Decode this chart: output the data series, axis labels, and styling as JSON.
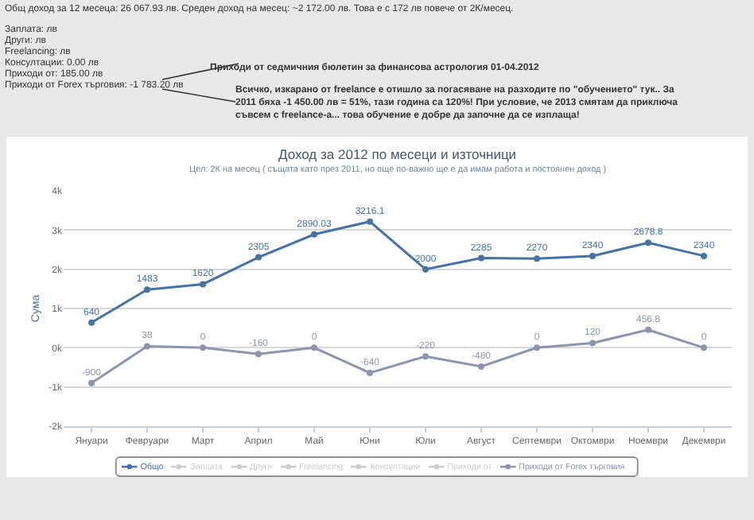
{
  "chart_data": {
    "type": "line",
    "title": "Доход за 2012 по месеци и източници",
    "subtitle": "Цел: 2К на месец ( същата като през 2011, но още по-важно ще е да имам работа и постоянен доход )",
    "ylabel": "Сума",
    "annotations": [
      "Общ доход за 12 месеца: 26 067.93 лв. Среден доход на месец: ~2 172.00 лв. Това е с 172 лв повече от 2К/месец.",
      "Заплата: лв",
      "Други: лв",
      "Freelancing: лв",
      "Консултации: 0.00 лв",
      "Приходи от: 185.00 лв",
      "Приходи от Forex търговия: -1 783.20 лв",
      "Приходи от седмичния бюлетин за финансова астрология 01-04.2012",
      "Всичко, изкарано от freelance е отишло за погасяване на разходите по \"обучението\" тук.. За 2011 бяха -1 450.00 лв = 51%, тази година са 120%! При условие, че 2013 смятам да приключа съвсем с freelance-а... това обучение е добре да започне да се изплаща!"
    ],
    "categories": [
      "Януари",
      "Февруари",
      "Март",
      "Април",
      "Май",
      "Юни",
      "Юли",
      "Август",
      "Септември",
      "Октомври",
      "Ноември",
      "Декември"
    ],
    "series": [
      {
        "name": "Общо",
        "color": "#4572a7",
        "values": [
          640,
          1483,
          1620,
          2305,
          2890.03,
          3216.1,
          2000,
          2285,
          2270,
          2340,
          2678.8,
          2340
        ]
      },
      {
        "name": "Заплата",
        "color": "#cccccc",
        "values": [
          null,
          null,
          null,
          null,
          null,
          null,
          null,
          null,
          null,
          null,
          null,
          null
        ]
      },
      {
        "name": "Други",
        "color": "#cccccc",
        "values": [
          null,
          null,
          null,
          null,
          null,
          null,
          null,
          null,
          null,
          null,
          null,
          null
        ]
      },
      {
        "name": "Freelancing",
        "color": "#cccccc",
        "values": [
          null,
          null,
          null,
          null,
          null,
          null,
          null,
          null,
          null,
          null,
          null,
          null
        ]
      },
      {
        "name": "Консултации",
        "color": "#cccccc",
        "values": [
          null,
          null,
          null,
          null,
          null,
          null,
          null,
          null,
          null,
          null,
          null,
          null
        ]
      },
      {
        "name": "Приходи от",
        "color": "#cccccc",
        "values": [
          null,
          null,
          null,
          null,
          null,
          null,
          null,
          null,
          null,
          null,
          null,
          null
        ]
      },
      {
        "name": "Приходи от Forex търговия",
        "color": "#8b95ad",
        "values": [
          -900,
          38,
          0,
          -160,
          0,
          -640,
          -220,
          -480,
          0,
          120,
          456.8,
          0
        ]
      }
    ],
    "ylim": [
      -2000,
      4000
    ],
    "yticks": [
      {
        "value": -2000,
        "label": "-2k"
      },
      {
        "value": -1000,
        "label": "-1k"
      },
      {
        "value": 0,
        "label": "0k"
      },
      {
        "value": 1000,
        "label": "1k"
      },
      {
        "value": 2000,
        "label": "2k"
      },
      {
        "value": 3000,
        "label": "3k"
      },
      {
        "value": 4000,
        "label": "4k"
      }
    ],
    "grid": "y",
    "legend": "bottom",
    "marker": "circle",
    "line_style": "solid",
    "data_labels": true
  }
}
